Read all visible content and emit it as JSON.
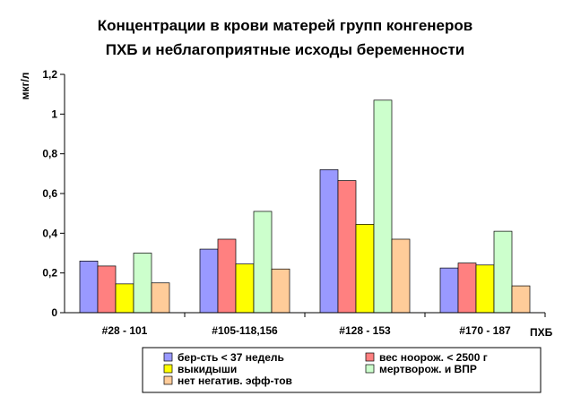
{
  "chart_data": {
    "type": "bar",
    "title": "Концентрации в крови матерей групп конгенеров",
    "subtitle": "ПХБ и неблагоприятные исходы беременности",
    "ylabel": "мкг/л",
    "xlabel": "ПХБ",
    "ylim": [
      0,
      1.2
    ],
    "yticks": [
      "0",
      "0,2",
      "0,4",
      "0,6",
      "0,8",
      "1",
      "1,2"
    ],
    "grid": false,
    "legend_position": "bottom",
    "categories": [
      "#28 - 101",
      "#105-118,156",
      "#128 - 153",
      "#170 - 187"
    ],
    "series": [
      {
        "name": "бер-сть < 37 недель",
        "color": "#9999ff",
        "values": [
          0.26,
          0.32,
          0.72,
          0.225
        ]
      },
      {
        "name": "вес ноорож. < 2500 г",
        "color": "#ff8080",
        "values": [
          0.235,
          0.37,
          0.665,
          0.25
        ]
      },
      {
        "name": "выкидыши",
        "color": "#ffff00",
        "values": [
          0.145,
          0.245,
          0.445,
          0.24
        ]
      },
      {
        "name": "мертворож. и ВПР",
        "color": "#ccffcc",
        "values": [
          0.3,
          0.51,
          1.07,
          0.41
        ]
      },
      {
        "name": "нет негатив. эфф-тов",
        "color": "#ffcc99",
        "values": [
          0.15,
          0.22,
          0.37,
          0.135
        ]
      }
    ]
  }
}
